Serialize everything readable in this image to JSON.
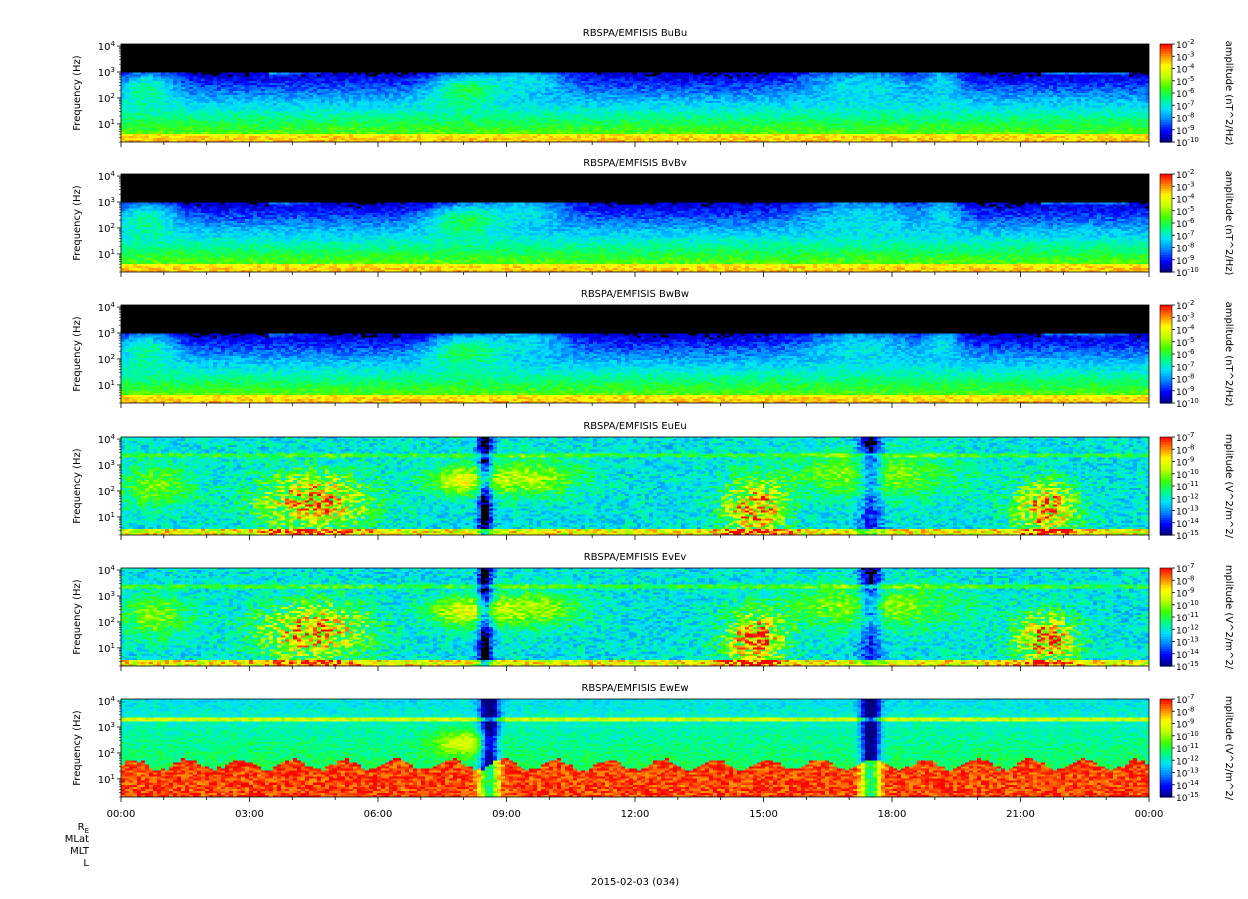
{
  "chart_data": {
    "type": "heatmap",
    "date_label": "2015-02-03 (034)",
    "x_axis": {
      "tick_labels": [
        "00:00",
        "03:00",
        "06:00",
        "09:00",
        "12:00",
        "15:00",
        "18:00",
        "21:00",
        "00:00"
      ],
      "range_hours": [
        0,
        24
      ],
      "ephemeris_labels": [
        "R_E",
        "MLat",
        "MLT",
        "L"
      ]
    },
    "y_axis": {
      "label": "Frequency (Hz)",
      "scale": "log",
      "range_hz": [
        2,
        12000
      ],
      "ticks": [
        {
          "base": "10",
          "exp": "1",
          "value": 10
        },
        {
          "base": "10",
          "exp": "2",
          "value": 100
        },
        {
          "base": "10",
          "exp": "3",
          "value": 1000
        },
        {
          "base": "10",
          "exp": "4",
          "value": 10000
        }
      ]
    },
    "colormap": [
      "#000080",
      "#0000ff",
      "#0080ff",
      "#00e0ff",
      "#00ff80",
      "#40ff00",
      "#c0ff00",
      "#ffff00",
      "#ff8000",
      "#ff0000"
    ],
    "panels": [
      {
        "name": "BuBu",
        "title": "RBSPA/EMFISIS  BuBu",
        "colorbar_label": "amplitude (nT^2/Hz)",
        "colorbar_ticks": [
          {
            "base": "10",
            "exp": "-2"
          },
          {
            "base": "10",
            "exp": "-3"
          },
          {
            "base": "10",
            "exp": "-4"
          },
          {
            "base": "10",
            "exp": "-5"
          },
          {
            "base": "10",
            "exp": "-6"
          },
          {
            "base": "10",
            "exp": "-7"
          },
          {
            "base": "10",
            "exp": "-8"
          },
          {
            "base": "10",
            "exp": "-9"
          },
          {
            "base": "10",
            "exp": "-10"
          }
        ],
        "colorbar_range": [
          -10,
          -2
        ],
        "field": "B"
      },
      {
        "name": "BvBv",
        "title": "RBSPA/EMFISIS  BvBv",
        "colorbar_label": "amplitude (nT^2/Hz)",
        "colorbar_ticks": [
          {
            "base": "10",
            "exp": "-2"
          },
          {
            "base": "10",
            "exp": "-3"
          },
          {
            "base": "10",
            "exp": "-4"
          },
          {
            "base": "10",
            "exp": "-5"
          },
          {
            "base": "10",
            "exp": "-6"
          },
          {
            "base": "10",
            "exp": "-7"
          },
          {
            "base": "10",
            "exp": "-8"
          },
          {
            "base": "10",
            "exp": "-9"
          },
          {
            "base": "10",
            "exp": "-10"
          }
        ],
        "colorbar_range": [
          -10,
          -2
        ],
        "field": "B"
      },
      {
        "name": "BwBw",
        "title": "RBSPA/EMFISIS  BwBw",
        "colorbar_label": "amplitude (nT^2/Hz)",
        "colorbar_ticks": [
          {
            "base": "10",
            "exp": "-2"
          },
          {
            "base": "10",
            "exp": "-3"
          },
          {
            "base": "10",
            "exp": "-4"
          },
          {
            "base": "10",
            "exp": "-5"
          },
          {
            "base": "10",
            "exp": "-6"
          },
          {
            "base": "10",
            "exp": "-7"
          },
          {
            "base": "10",
            "exp": "-8"
          },
          {
            "base": "10",
            "exp": "-9"
          },
          {
            "base": "10",
            "exp": "-10"
          }
        ],
        "colorbar_range": [
          -10,
          -2
        ],
        "field": "B"
      },
      {
        "name": "EuEu",
        "title": "RBSPA/EMFISIS  EuEu",
        "colorbar_label": "mplitude (V^2/m^2/",
        "colorbar_ticks": [
          {
            "base": "10",
            "exp": "-7"
          },
          {
            "base": "10",
            "exp": "-8"
          },
          {
            "base": "10",
            "exp": "-9"
          },
          {
            "base": "10",
            "exp": "-10"
          },
          {
            "base": "10",
            "exp": "-11"
          },
          {
            "base": "10",
            "exp": "-12"
          },
          {
            "base": "10",
            "exp": "-13"
          },
          {
            "base": "10",
            "exp": "-14"
          },
          {
            "base": "10",
            "exp": "-15"
          }
        ],
        "colorbar_range": [
          -15,
          -7
        ],
        "field": "E"
      },
      {
        "name": "EvEv",
        "title": "RBSPA/EMFISIS  EvEv",
        "colorbar_label": "mplitude (V^2/m^2/",
        "colorbar_ticks": [
          {
            "base": "10",
            "exp": "-7"
          },
          {
            "base": "10",
            "exp": "-8"
          },
          {
            "base": "10",
            "exp": "-9"
          },
          {
            "base": "10",
            "exp": "-10"
          },
          {
            "base": "10",
            "exp": "-11"
          },
          {
            "base": "10",
            "exp": "-12"
          },
          {
            "base": "10",
            "exp": "-13"
          },
          {
            "base": "10",
            "exp": "-14"
          },
          {
            "base": "10",
            "exp": "-15"
          }
        ],
        "colorbar_range": [
          -15,
          -7
        ],
        "field": "E"
      },
      {
        "name": "EwEw",
        "title": "RBSPA/EMFISIS  EwEw",
        "colorbar_label": "mplitude (V^2/m^2/",
        "colorbar_ticks": [
          {
            "base": "10",
            "exp": "-7"
          },
          {
            "base": "10",
            "exp": "-8"
          },
          {
            "base": "10",
            "exp": "-9"
          },
          {
            "base": "10",
            "exp": "-10"
          },
          {
            "base": "10",
            "exp": "-11"
          },
          {
            "base": "10",
            "exp": "-12"
          },
          {
            "base": "10",
            "exp": "-13"
          },
          {
            "base": "10",
            "exp": "-14"
          },
          {
            "base": "10",
            "exp": "-15"
          }
        ],
        "colorbar_range": [
          -15,
          -7
        ],
        "field": "Ew"
      }
    ]
  }
}
